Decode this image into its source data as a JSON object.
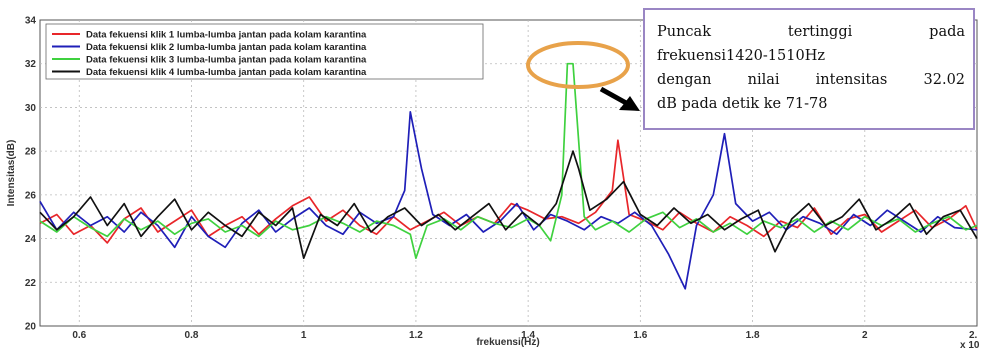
{
  "chart_data": {
    "type": "line",
    "xlabel": "frekuensi(Hz)",
    "ylabel": "Intensitas(dB)",
    "x_multiplier_label": "x 10",
    "xlim": [
      0.53,
      2.2
    ],
    "ylim": [
      20,
      34
    ],
    "x_ticks": [
      0.6,
      0.8,
      1,
      1.2,
      1.4,
      1.6,
      1.8,
      2
    ],
    "x_tick_labels": [
      "0.6",
      "0.8",
      "1",
      "1.2",
      "1.4",
      "1.6",
      "1.8",
      "2"
    ],
    "y_ticks": [
      20,
      22,
      24,
      26,
      28,
      30,
      32,
      34
    ],
    "x_edge_label": "2.",
    "grid": true,
    "legend": "top-left",
    "series": [
      {
        "name": "Data fekuensi klik 1 lumba-lumba jantan pada kolam karantina",
        "color": "#e8262a",
        "x": [
          0.53,
          0.56,
          0.59,
          0.62,
          0.65,
          0.68,
          0.71,
          0.74,
          0.77,
          0.8,
          0.83,
          0.86,
          0.89,
          0.92,
          0.95,
          0.98,
          1.01,
          1.04,
          1.07,
          1.1,
          1.13,
          1.16,
          1.19,
          1.22,
          1.25,
          1.28,
          1.31,
          1.34,
          1.37,
          1.4,
          1.43,
          1.46,
          1.49,
          1.52,
          1.55,
          1.56,
          1.58,
          1.61,
          1.64,
          1.67,
          1.7,
          1.73,
          1.76,
          1.79,
          1.82,
          1.85,
          1.88,
          1.91,
          1.94,
          1.97,
          2.0,
          2.03,
          2.06,
          2.09,
          2.12,
          2.15,
          2.18,
          2.2
        ],
        "y": [
          24.7,
          25.1,
          24.2,
          24.6,
          23.8,
          24.9,
          25.4,
          24.3,
          24.8,
          25.3,
          24.1,
          24.6,
          25.0,
          24.2,
          24.9,
          25.5,
          25.9,
          24.8,
          25.3,
          24.6,
          24.2,
          25.0,
          24.4,
          24.8,
          25.2,
          24.6,
          25.0,
          24.7,
          25.6,
          25.3,
          24.9,
          25.0,
          24.7,
          25.2,
          26.2,
          28.5,
          25.1,
          24.8,
          24.4,
          25.2,
          24.7,
          24.3,
          25.0,
          24.6,
          24.1,
          24.8,
          24.5,
          25.4,
          24.2,
          24.9,
          25.1,
          24.3,
          24.8,
          25.3,
          24.5,
          24.9,
          25.5,
          24.4
        ]
      },
      {
        "name": "Data fekuensi klik 2 lumba-lumba jantan pada kolam karantina",
        "color": "#1f1fb8",
        "x": [
          0.53,
          0.56,
          0.59,
          0.62,
          0.65,
          0.68,
          0.71,
          0.74,
          0.77,
          0.8,
          0.83,
          0.86,
          0.89,
          0.92,
          0.95,
          0.98,
          1.01,
          1.04,
          1.07,
          1.1,
          1.13,
          1.16,
          1.18,
          1.19,
          1.21,
          1.23,
          1.26,
          1.29,
          1.32,
          1.35,
          1.38,
          1.41,
          1.44,
          1.47,
          1.5,
          1.53,
          1.56,
          1.59,
          1.62,
          1.65,
          1.68,
          1.7,
          1.73,
          1.75,
          1.77,
          1.8,
          1.83,
          1.86,
          1.89,
          1.92,
          1.95,
          1.98,
          2.01,
          2.04,
          2.07,
          2.1,
          2.13,
          2.16,
          2.2
        ],
        "y": [
          25.7,
          24.4,
          25.2,
          24.6,
          25.0,
          24.3,
          25.2,
          24.6,
          23.6,
          25.0,
          24.1,
          23.6,
          24.7,
          25.3,
          24.3,
          24.9,
          25.4,
          24.6,
          24.2,
          25.2,
          24.7,
          25.0,
          26.2,
          29.8,
          27.2,
          25.1,
          24.6,
          25.1,
          24.3,
          24.8,
          25.6,
          24.4,
          25.1,
          24.8,
          24.4,
          25.0,
          24.7,
          25.2,
          24.6,
          23.3,
          21.7,
          24.6,
          26.0,
          28.8,
          25.6,
          24.8,
          25.2,
          24.4,
          25.0,
          24.7,
          24.2,
          25.1,
          24.6,
          25.3,
          24.8,
          24.3,
          25.0,
          24.5,
          24.4
        ]
      },
      {
        "name": "Data fekuensi klik 3 lumba-lumba jantan pada kolam karantina",
        "color": "#3fd13f",
        "x": [
          0.53,
          0.56,
          0.59,
          0.62,
          0.65,
          0.68,
          0.71,
          0.74,
          0.77,
          0.8,
          0.83,
          0.86,
          0.89,
          0.92,
          0.95,
          0.98,
          1.01,
          1.04,
          1.07,
          1.1,
          1.13,
          1.16,
          1.19,
          1.2,
          1.22,
          1.25,
          1.28,
          1.31,
          1.34,
          1.37,
          1.4,
          1.42,
          1.44,
          1.46,
          1.47,
          1.48,
          1.5,
          1.52,
          1.55,
          1.58,
          1.61,
          1.64,
          1.67,
          1.7,
          1.73,
          1.76,
          1.79,
          1.82,
          1.85,
          1.88,
          1.91,
          1.94,
          1.97,
          2.0,
          2.03,
          2.06,
          2.09,
          2.12,
          2.15,
          2.18,
          2.2
        ],
        "y": [
          24.8,
          24.3,
          25.0,
          24.5,
          24.1,
          24.9,
          24.4,
          24.8,
          24.2,
          24.7,
          24.9,
          24.3,
          24.6,
          24.1,
          24.8,
          24.4,
          24.6,
          25.0,
          24.7,
          24.3,
          24.8,
          24.6,
          24.2,
          23.1,
          24.6,
          24.9,
          24.4,
          25.0,
          24.7,
          24.5,
          24.9,
          24.6,
          23.9,
          26.0,
          32.0,
          32.0,
          25.0,
          24.4,
          24.8,
          24.3,
          24.9,
          25.2,
          24.5,
          24.9,
          24.3,
          24.7,
          24.2,
          24.8,
          24.5,
          24.9,
          24.3,
          24.8,
          24.4,
          25.0,
          24.6,
          24.9,
          24.3,
          24.7,
          25.0,
          24.4,
          24.6
        ]
      },
      {
        "name": "Data fekuensi klik 4 lumba-lumba jantan pada kolam karantina",
        "color": "#111111",
        "x": [
          0.53,
          0.56,
          0.59,
          0.62,
          0.65,
          0.68,
          0.71,
          0.74,
          0.77,
          0.8,
          0.83,
          0.86,
          0.89,
          0.92,
          0.95,
          0.98,
          1.0,
          1.03,
          1.06,
          1.09,
          1.12,
          1.15,
          1.18,
          1.21,
          1.24,
          1.27,
          1.3,
          1.33,
          1.36,
          1.39,
          1.42,
          1.45,
          1.48,
          1.49,
          1.51,
          1.54,
          1.57,
          1.6,
          1.63,
          1.66,
          1.69,
          1.72,
          1.75,
          1.78,
          1.81,
          1.84,
          1.87,
          1.9,
          1.93,
          1.96,
          1.99,
          2.02,
          2.05,
          2.08,
          2.11,
          2.14,
          2.17,
          2.2
        ],
        "y": [
          25.2,
          24.4,
          25.0,
          25.9,
          24.6,
          25.6,
          24.1,
          25.0,
          25.8,
          24.4,
          25.2,
          24.6,
          24.1,
          25.2,
          24.6,
          25.4,
          23.1,
          25.1,
          24.6,
          25.6,
          24.3,
          25.0,
          25.4,
          24.6,
          25.1,
          24.4,
          25.0,
          25.6,
          24.4,
          25.2,
          24.6,
          25.6,
          28.0,
          27.2,
          25.3,
          25.8,
          26.6,
          25.1,
          24.6,
          25.4,
          24.7,
          25.1,
          24.4,
          24.9,
          25.3,
          23.4,
          24.9,
          25.6,
          24.6,
          25.0,
          25.8,
          24.4,
          24.9,
          25.6,
          24.2,
          25.0,
          25.3,
          24.0
        ]
      }
    ]
  },
  "annotation": {
    "line1_word1": "Puncak",
    "line1_word2": "tertinggi",
    "line1_word3": "pada",
    "line2": "frekuensi1420-1510Hz",
    "line3_word1": "dengan",
    "line3_word2": "nilai",
    "line3_word3": "intensitas",
    "line3_word4": "32.02",
    "line4": "dB pada detik ke 71-78"
  },
  "colors": {
    "ellipse": "#e8a24a",
    "annotation_border": "#9a86c4"
  }
}
